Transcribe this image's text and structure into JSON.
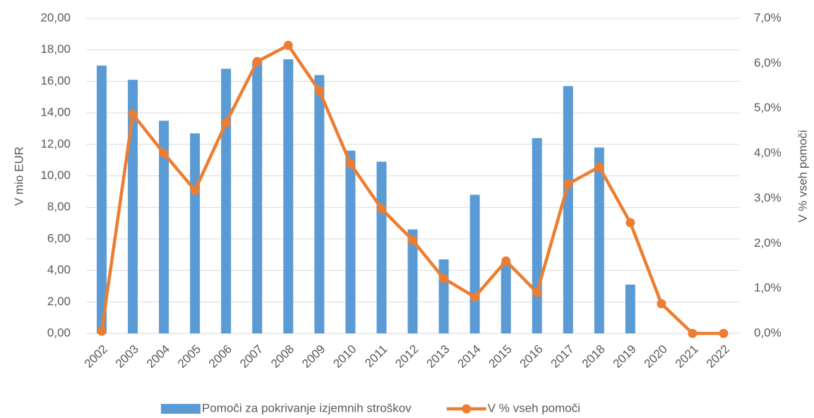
{
  "chart_data": {
    "type": "bar_line",
    "categories": [
      "2002",
      "2003",
      "2004",
      "2005",
      "2006",
      "2007",
      "2008",
      "2009",
      "2010",
      "2011",
      "2012",
      "2013",
      "2014",
      "2015",
      "2016",
      "2017",
      "2018",
      "2019",
      "2020",
      "2021",
      "2022"
    ],
    "series": [
      {
        "name": "Pomoči za pokrivanje izjemnih stroškov",
        "type": "bar",
        "color": "#5b9bd5",
        "axis": "y",
        "values": [
          17.0,
          16.1,
          13.5,
          12.7,
          16.8,
          17.3,
          17.4,
          16.4,
          11.6,
          10.9,
          6.6,
          4.7,
          8.8,
          4.5,
          12.4,
          15.7,
          11.8,
          3.1,
          0,
          0,
          0
        ]
      },
      {
        "name": "V % vseh pomoči",
        "type": "line",
        "color": "#ed7d31",
        "axis": "y2",
        "values": [
          0.05,
          4.87,
          4.0,
          3.18,
          4.68,
          6.04,
          6.4,
          5.39,
          3.77,
          2.77,
          2.07,
          1.22,
          0.81,
          1.61,
          0.91,
          3.32,
          3.7,
          2.46,
          0.66,
          0,
          0
        ]
      }
    ],
    "y_label": "V mio EUR",
    "y2_label": "V % vseh pomoči",
    "ylim": [
      0,
      20
    ],
    "yticks": [
      {
        "value": 0,
        "label": "0,00"
      },
      {
        "value": 2,
        "label": "2,00"
      },
      {
        "value": 4,
        "label": "4,00"
      },
      {
        "value": 6,
        "label": "6,00"
      },
      {
        "value": 8,
        "label": "8,00"
      },
      {
        "value": 10,
        "label": "10,00"
      },
      {
        "value": 12,
        "label": "12,00"
      },
      {
        "value": 14,
        "label": "14,00"
      },
      {
        "value": 16,
        "label": "16,00"
      },
      {
        "value": 18,
        "label": "18,00"
      },
      {
        "value": 20,
        "label": "20,00"
      }
    ],
    "y2lim": [
      0,
      7
    ],
    "y2ticks": [
      {
        "value": 0,
        "label": "0,0%"
      },
      {
        "value": 1,
        "label": "1,0%"
      },
      {
        "value": 2,
        "label": "2,0%"
      },
      {
        "value": 3,
        "label": "3,0%"
      },
      {
        "value": 4,
        "label": "4,0%"
      },
      {
        "value": 5,
        "label": "5,0%"
      },
      {
        "value": 6,
        "label": "6,0%"
      },
      {
        "value": 7,
        "label": "7,0%"
      }
    ],
    "grid": true,
    "legend": "bottom"
  }
}
